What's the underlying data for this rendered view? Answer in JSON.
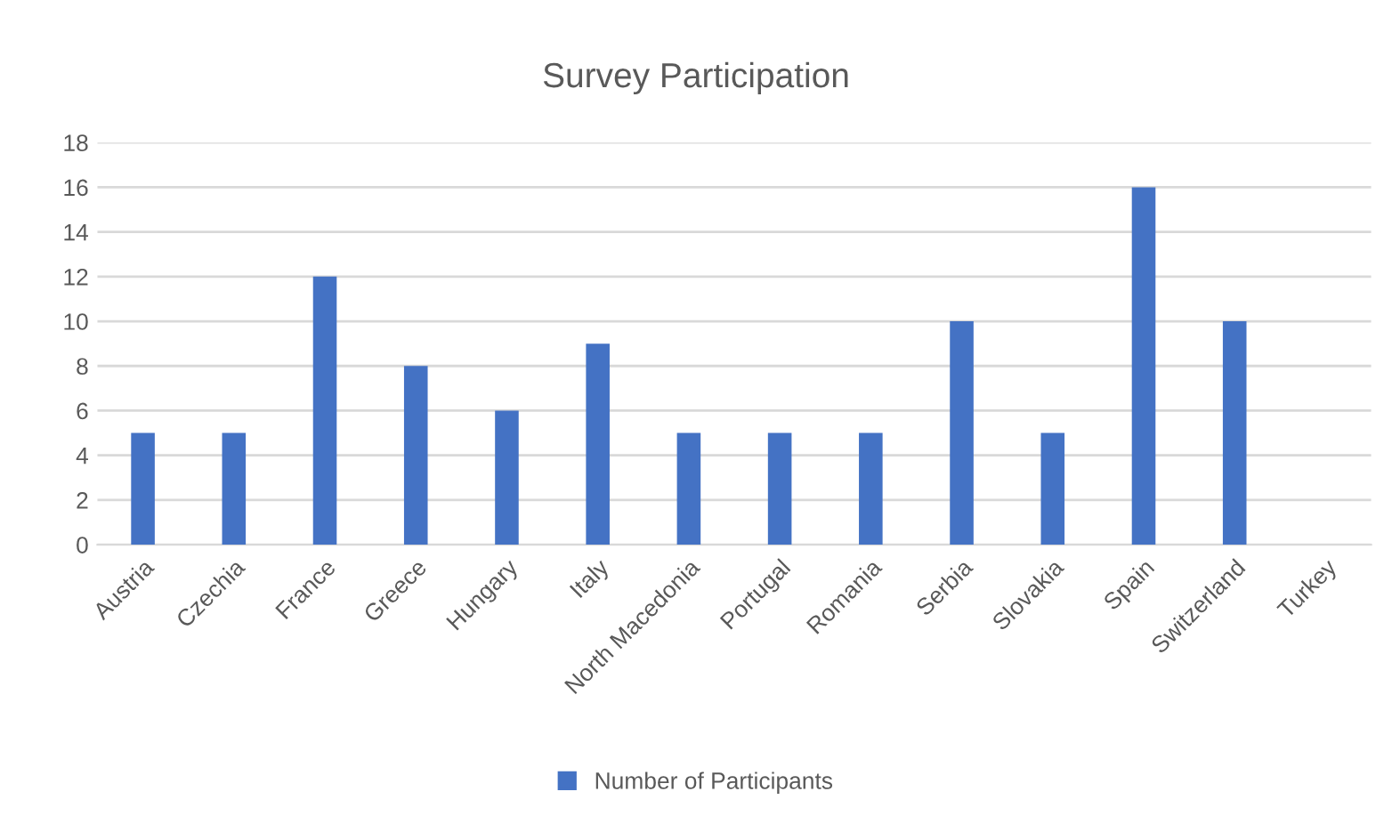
{
  "chart_data": {
    "type": "bar",
    "title": "Survey Participation",
    "categories": [
      "Austria",
      "Czechia",
      "France",
      "Greece",
      "Hungary",
      "Italy",
      "North Macedonia",
      "Portugal",
      "Romania",
      "Serbia",
      "Slovakia",
      "Spain",
      "Switzerland",
      "Turkey"
    ],
    "series": [
      {
        "name": "Number of Participants",
        "color": "#4472c4",
        "values": [
          5,
          5,
          12,
          8,
          6,
          9,
          5,
          5,
          5,
          10,
          5,
          16,
          10,
          0
        ]
      }
    ],
    "ylim": [
      0,
      18
    ],
    "yticks": [
      0,
      2,
      4,
      6,
      8,
      10,
      12,
      14,
      16,
      18
    ],
    "grid": "y",
    "legend": "bottom"
  }
}
